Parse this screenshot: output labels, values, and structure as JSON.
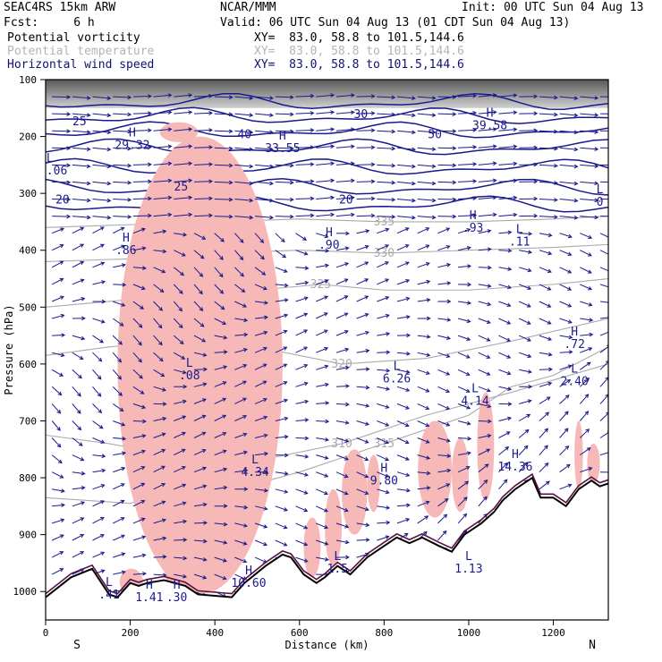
{
  "header": {
    "model": "SEAC4RS 15km ARW",
    "org": "NCAR/MMM",
    "init": "Init: 00 UTC Sun 04 Aug 13",
    "fcst": "Fcst:     6 h",
    "valid": "Valid: 06 UTC Sun 04 Aug 13 (01 CDT Sun 04 Aug 13)",
    "fields": [
      {
        "name": "Potential vorticity",
        "xy": "XY=  83.0, 58.8 to 101.5,144.6",
        "color": "#000000"
      },
      {
        "name": "Potential temperature",
        "xy": "XY=  83.0, 58.8 to 101.5,144.6",
        "color": "#b4b4b4"
      },
      {
        "name": "Horizontal wind speed",
        "xy": "XY=  83.0, 58.8 to 101.5,144.6",
        "color": "#101070"
      }
    ]
  },
  "chart_data": {
    "type": "contour",
    "xlabel": "Distance (km)",
    "ylabel": "Pressure (hPa)",
    "xlim": [
      0,
      1330
    ],
    "ylim": [
      1050,
      100
    ],
    "x_ticks": [
      0,
      200,
      400,
      600,
      800,
      1000,
      1200
    ],
    "y_ticks": [
      100,
      200,
      300,
      400,
      500,
      600,
      700,
      800,
      900,
      1000
    ],
    "x_end_labels": {
      "left": "S",
      "right": "N"
    },
    "colors": {
      "wind": "#1a1a8c",
      "theta": "#aaaaaa",
      "pv": "#5a1040",
      "pv_fill": "#f7b8b8",
      "terrain": "#000000"
    },
    "theta_contours": [
      {
        "level": "310",
        "points": [
          [
            0,
            725
          ],
          [
            150,
            740
          ],
          [
            300,
            760
          ],
          [
            500,
            770
          ],
          [
            700,
            740
          ],
          [
            900,
            690
          ],
          [
            1100,
            650
          ],
          [
            1330,
            600
          ]
        ]
      },
      {
        "level": "315",
        "points": [
          [
            0,
            835
          ],
          [
            200,
            845
          ],
          [
            300,
            825
          ],
          [
            500,
            810
          ],
          [
            600,
            790
          ],
          [
            800,
            740
          ],
          [
            1000,
            690
          ],
          [
            1100,
            640
          ],
          [
            1200,
            620
          ],
          [
            1330,
            570
          ]
        ]
      },
      {
        "level": "320",
        "points": [
          [
            0,
            585
          ],
          [
            150,
            570
          ],
          [
            300,
            560
          ],
          [
            500,
            570
          ],
          [
            700,
            600
          ],
          [
            900,
            590
          ],
          [
            1100,
            560
          ],
          [
            1330,
            520
          ]
        ]
      },
      {
        "level": "325",
        "points": [
          [
            0,
            500
          ],
          [
            150,
            490
          ],
          [
            300,
            480
          ],
          [
            500,
            470
          ],
          [
            650,
            460
          ],
          [
            800,
            470
          ],
          [
            1000,
            470
          ],
          [
            1200,
            460
          ],
          [
            1330,
            450
          ]
        ]
      },
      {
        "level": "330",
        "points": [
          [
            0,
            420
          ],
          [
            200,
            415
          ],
          [
            400,
            405
          ],
          [
            600,
            400
          ],
          [
            800,
            405
          ],
          [
            1000,
            400
          ],
          [
            1200,
            395
          ],
          [
            1330,
            390
          ]
        ]
      },
      {
        "level": "335",
        "points": [
          [
            0,
            360
          ],
          [
            200,
            355
          ],
          [
            400,
            350
          ],
          [
            600,
            345
          ],
          [
            800,
            350
          ],
          [
            1000,
            350
          ],
          [
            1200,
            345
          ],
          [
            1330,
            340
          ]
        ]
      }
    ],
    "speed_labels": [
      {
        "x": 80,
        "p": 180,
        "text": "25"
      },
      {
        "x": 320,
        "p": 295,
        "text": "25"
      },
      {
        "x": 40,
        "p": 318,
        "text": "20"
      },
      {
        "x": 710,
        "p": 318,
        "text": "20"
      },
      {
        "x": 745,
        "p": 168,
        "text": "30"
      },
      {
        "x": 920,
        "p": 203,
        "text": "50"
      },
      {
        "x": 470,
        "p": 203,
        "text": "40"
      }
    ],
    "extrema": [
      {
        "sym": "H",
        "x": 205,
        "p": 200,
        "value": "29.32"
      },
      {
        "sym": "L",
        "x": 10,
        "p": 245,
        "value": "28.06"
      },
      {
        "sym": "H",
        "x": 560,
        "p": 205,
        "value": "33.55"
      },
      {
        "sym": "H",
        "x": 1050,
        "p": 165,
        "value": "39.58"
      },
      {
        "sym": "H",
        "x": 190,
        "p": 385,
        "value": ".86"
      },
      {
        "sym": "H",
        "x": 670,
        "p": 375,
        "value": ".90"
      },
      {
        "sym": "H",
        "x": 1010,
        "p": 345,
        "value": ".93"
      },
      {
        "sym": "L",
        "x": 1120,
        "p": 370,
        "value": ".11"
      },
      {
        "sym": "L",
        "x": 1310,
        "p": 300,
        "value": "0"
      },
      {
        "sym": "H",
        "x": 1250,
        "p": 550,
        "value": ".72"
      },
      {
        "sym": "L",
        "x": 340,
        "p": 605,
        "value": ".08"
      },
      {
        "sym": "L",
        "x": 830,
        "p": 610,
        "value": "6.26"
      },
      {
        "sym": "L",
        "x": 1015,
        "p": 650,
        "value": "4.14"
      },
      {
        "sym": "L",
        "x": 1250,
        "p": 615,
        "value": "2.40"
      },
      {
        "sym": "L",
        "x": 495,
        "p": 775,
        "value": "4.34"
      },
      {
        "sym": "H",
        "x": 800,
        "p": 790,
        "value": "9.80"
      },
      {
        "sym": "H",
        "x": 1110,
        "p": 765,
        "value": "14.36"
      },
      {
        "sym": "H",
        "x": 480,
        "p": 970,
        "value": "10.60"
      },
      {
        "sym": "L",
        "x": 150,
        "p": 990,
        "value": ".41"
      },
      {
        "sym": "H",
        "x": 245,
        "p": 995,
        "value": "1.41"
      },
      {
        "sym": "H",
        "x": 310,
        "p": 995,
        "value": ".30"
      },
      {
        "sym": "L",
        "x": 690,
        "p": 945,
        "value": "1.5"
      },
      {
        "sym": "L",
        "x": 1000,
        "p": 945,
        "value": "1.13"
      }
    ],
    "terrain": [
      [
        0,
        1010
      ],
      [
        60,
        975
      ],
      [
        110,
        960
      ],
      [
        150,
        1005
      ],
      [
        170,
        1010
      ],
      [
        200,
        985
      ],
      [
        220,
        990
      ],
      [
        240,
        985
      ],
      [
        280,
        980
      ],
      [
        330,
        990
      ],
      [
        360,
        1005
      ],
      [
        440,
        1010
      ],
      [
        470,
        985
      ],
      [
        520,
        955
      ],
      [
        560,
        935
      ],
      [
        580,
        940
      ],
      [
        610,
        970
      ],
      [
        640,
        985
      ],
      [
        660,
        975
      ],
      [
        690,
        955
      ],
      [
        720,
        970
      ],
      [
        760,
        940
      ],
      [
        800,
        920
      ],
      [
        830,
        905
      ],
      [
        860,
        915
      ],
      [
        890,
        905
      ],
      [
        930,
        920
      ],
      [
        960,
        930
      ],
      [
        990,
        900
      ],
      [
        1030,
        880
      ],
      [
        1060,
        860
      ],
      [
        1080,
        840
      ],
      [
        1110,
        820
      ],
      [
        1150,
        800
      ],
      [
        1170,
        835
      ],
      [
        1200,
        835
      ],
      [
        1230,
        850
      ],
      [
        1260,
        820
      ],
      [
        1290,
        805
      ],
      [
        1310,
        815
      ],
      [
        1330,
        810
      ]
    ]
  }
}
